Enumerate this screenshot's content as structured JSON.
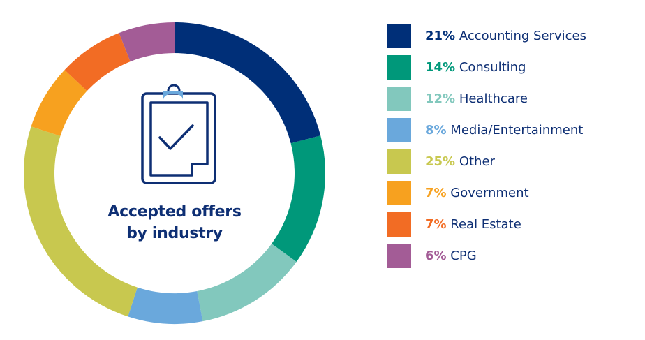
{
  "chart_data": {
    "type": "pie",
    "variant": "donut",
    "title": "Accepted offers by industry",
    "title_lines": [
      "Accepted offers",
      "by industry"
    ],
    "legend_position": "right",
    "slices": [
      {
        "label": "Accounting Services",
        "value": 21,
        "pct_label": "21%",
        "color": "#002f78"
      },
      {
        "label": "Consulting",
        "value": 14,
        "pct_label": "14%",
        "color": "#00987a"
      },
      {
        "label": "Healthcare",
        "value": 12,
        "pct_label": "12%",
        "color": "#82c8bd"
      },
      {
        "label": "Media/Entertainment",
        "value": 8,
        "pct_label": "8%",
        "color": "#6aa8dc"
      },
      {
        "label": "Other",
        "value": 25,
        "pct_label": "25%",
        "color": "#c8c84f"
      },
      {
        "label": "Government",
        "value": 7,
        "pct_label": "7%",
        "color": "#f7a11f"
      },
      {
        "label": "Real Estate",
        "value": 7,
        "pct_label": "7%",
        "color": "#f26c24"
      },
      {
        "label": "CPG",
        "value": 6,
        "pct_label": "6%",
        "color": "#a35c96"
      }
    ]
  },
  "colors": {
    "text": "#0e2f74",
    "icon_clip": "#6aa8dc"
  },
  "center_icon": "clipboard-check-icon"
}
